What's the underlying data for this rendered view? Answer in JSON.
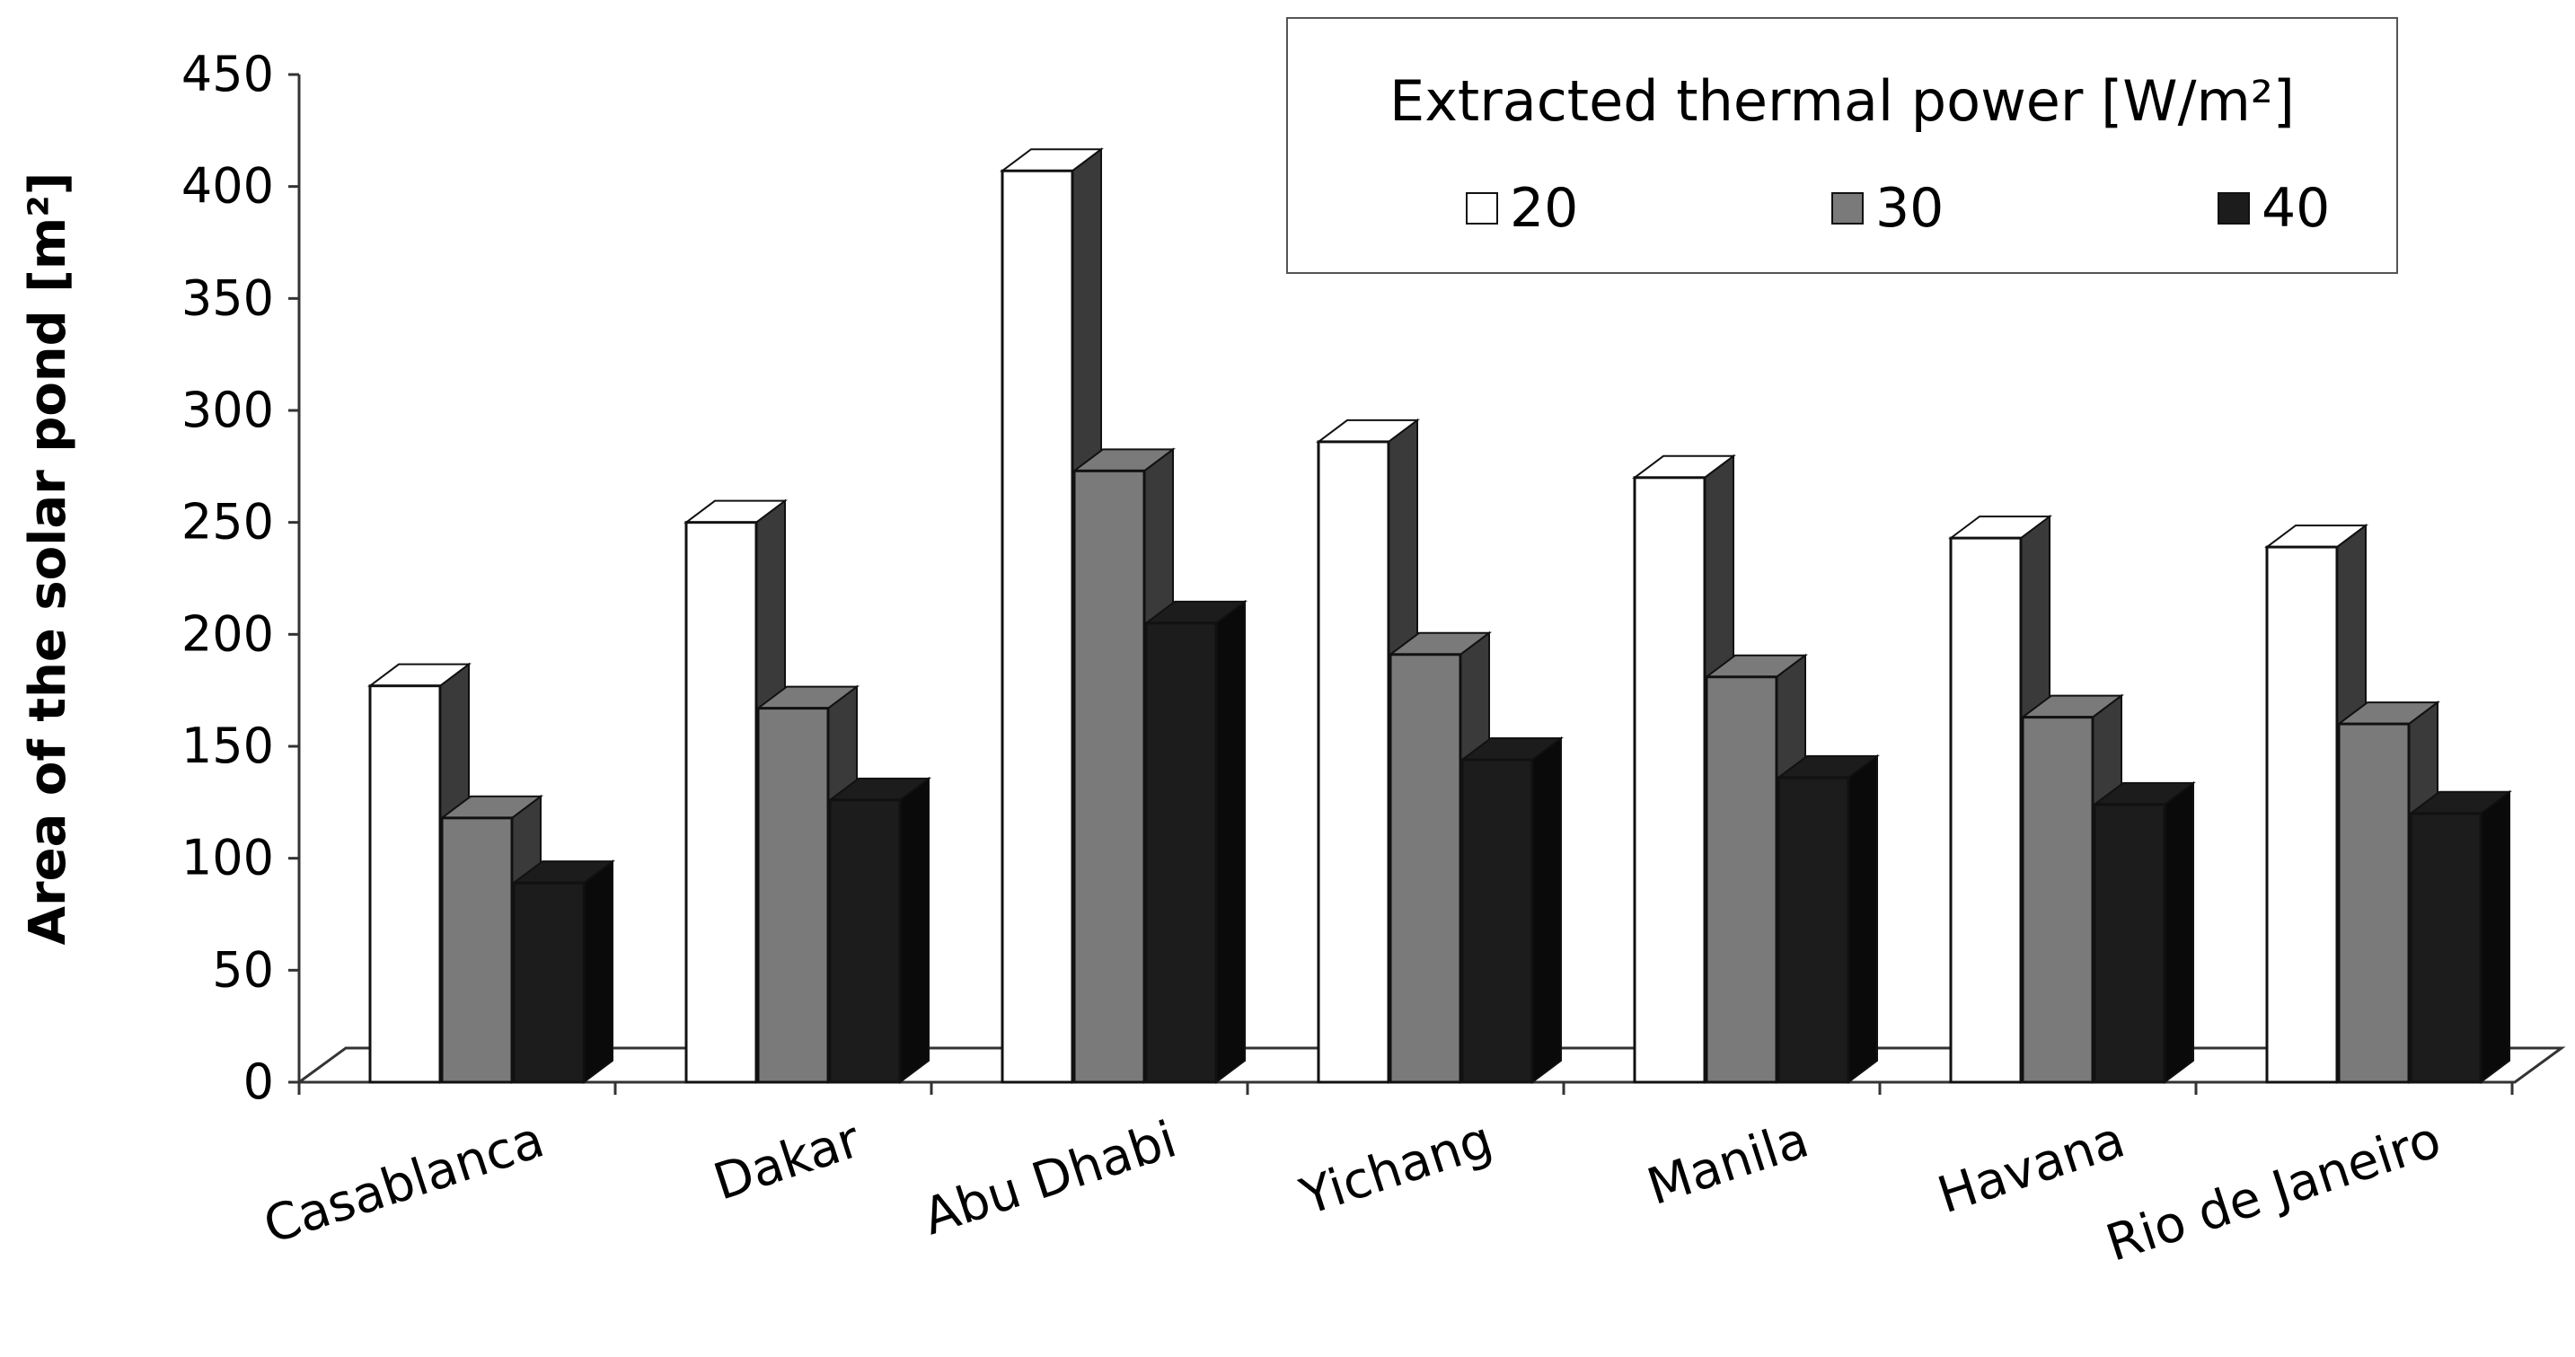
{
  "chart_data": {
    "type": "bar",
    "style": "3d-clustered",
    "ylabel": "Area of the solar pond [m²]",
    "xlabel": "",
    "ylim": [
      0,
      450
    ],
    "yticks": [
      0,
      50,
      100,
      150,
      200,
      250,
      300,
      350,
      400,
      450
    ],
    "tick_labels": [
      "0",
      "50",
      "100",
      "150",
      "200",
      "250",
      "300",
      "350",
      "400",
      "450"
    ],
    "categories": [
      "Casablanca",
      "Dakar",
      "Abu Dhabi",
      "Yichang",
      "Manila",
      "Havana",
      "Rio de Janeiro"
    ],
    "legend": {
      "title": "Extracted thermal power [W/m²]",
      "placement": "top-right"
    },
    "series": [
      {
        "name": "20",
        "color": "#ffffff",
        "side_color": "#3a3a3a",
        "values": [
          177,
          250,
          407,
          286,
          270,
          243,
          239
        ]
      },
      {
        "name": "30",
        "color": "#7a7a7a",
        "side_color": "#3a3a3a",
        "values": [
          118,
          167,
          273,
          191,
          181,
          163,
          160
        ]
      },
      {
        "name": "40",
        "color": "#1c1c1c",
        "side_color": "#0a0a0a",
        "values": [
          89,
          126,
          205,
          144,
          136,
          124,
          120
        ]
      }
    ]
  }
}
